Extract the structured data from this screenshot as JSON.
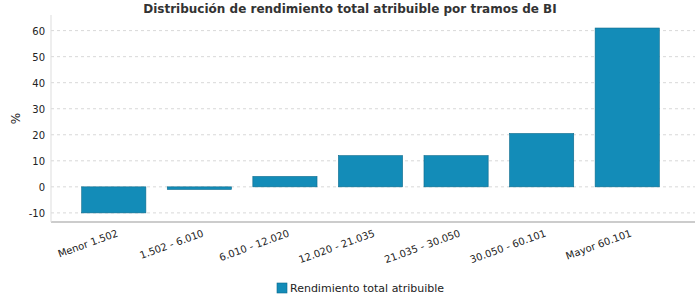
{
  "chart_data": {
    "type": "bar",
    "title": "Distribución de rendimiento total atribuible por tramos de BI",
    "y_label": "%",
    "categories": [
      "Menor 1.502",
      "1.502 - 6.010",
      "6.010 - 12.020",
      "12.020 - 21.035",
      "21.035 - 30.050",
      "30.050 - 60.101",
      "Mayor 60.101"
    ],
    "series": [
      {
        "name": "Rendimiento total atribuible",
        "color": "#138cb8",
        "values": [
          -10,
          -1,
          4,
          12,
          12,
          20.5,
          61
        ]
      }
    ],
    "ylim": [
      -13.5,
      66
    ],
    "yticks": [
      -10,
      0,
      10,
      20,
      30,
      40,
      50,
      60
    ],
    "grid": true,
    "legend": "bottom"
  }
}
